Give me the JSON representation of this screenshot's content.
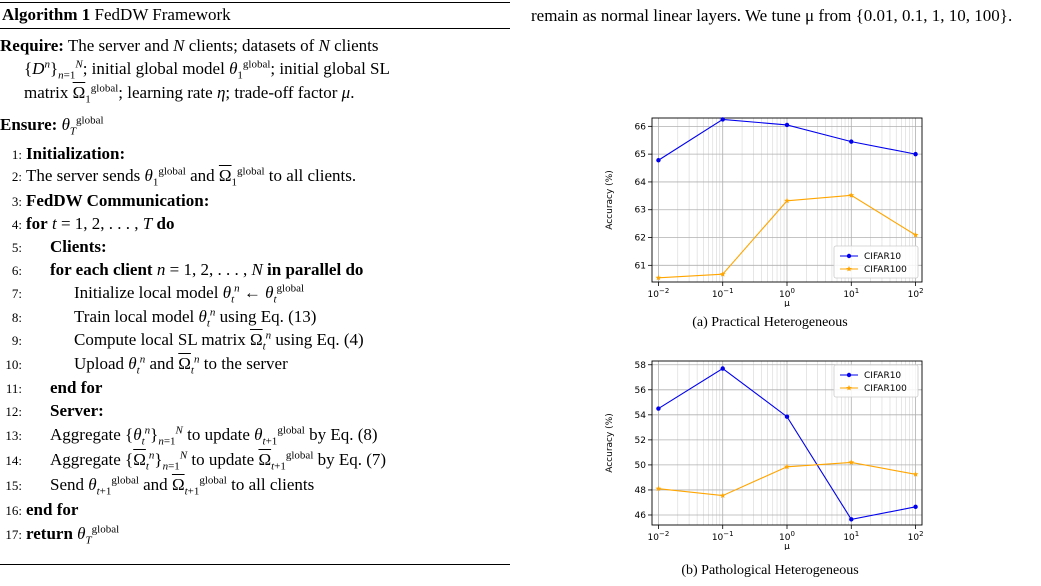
{
  "algorithm": {
    "label": "Algorithm 1",
    "title": "FedDW Framework",
    "require_label": "Require:",
    "ensure_label": "Ensure:",
    "lines": [
      {
        "num": "1:",
        "text": "Initialization:"
      },
      {
        "num": "2:",
        "text": "The server sends θ1global and Ω1global to all clients."
      },
      {
        "num": "3:",
        "text": "FedDW Communication:"
      },
      {
        "num": "4:",
        "text": "for t = 1, 2, . . . , T do"
      },
      {
        "num": "5:",
        "text": "Clients:"
      },
      {
        "num": "6:",
        "text": "for each client n = 1, 2, . . . , N in parallel do"
      },
      {
        "num": "7:",
        "text": "Initialize local model θtn ← θtglobal"
      },
      {
        "num": "8:",
        "text": "Train local model θtn using Eq. (13)"
      },
      {
        "num": "9:",
        "text": "Compute local SL matrix Ωtn using Eq. (4)"
      },
      {
        "num": "10:",
        "text": "Upload θtn and Ωtn to the server"
      },
      {
        "num": "11:",
        "text": "end for"
      },
      {
        "num": "12:",
        "text": "Server:"
      },
      {
        "num": "13:",
        "text": "Aggregate {θtn}Nn=1 to update θt+1global by Eq. (8)"
      },
      {
        "num": "14:",
        "text": "Aggregate {Ωtn}Nn=1 to update Ωt+1global by Eq. (7)"
      },
      {
        "num": "15:",
        "text": "Send θt+1global and Ωt+1global to all clients"
      },
      {
        "num": "16:",
        "text": "end for"
      },
      {
        "num": "17:",
        "text": "return θTglobal"
      }
    ]
  },
  "side_text": "remain as normal linear layers. We tune μ from {0.01, 0.1, 1, 10, 100}.",
  "chart_data": [
    {
      "type": "line",
      "caption": "(a) Practical Heterogeneous",
      "xlabel": "μ",
      "ylabel": "Accuracy (%)",
      "x": [
        0.01,
        0.1,
        1,
        10,
        100
      ],
      "x_tick_labels": [
        "10−2",
        "10−1",
        "100",
        "101",
        "102"
      ],
      "xscale": "log",
      "ylim": [
        60.4,
        66.3
      ],
      "y_ticks": [
        61,
        62,
        63,
        64,
        65,
        66
      ],
      "grid": true,
      "legend_position": "lower-right",
      "series": [
        {
          "name": "CIFAR10",
          "color": "#0000ee",
          "marker": "circle",
          "values": [
            64.78,
            66.25,
            66.05,
            65.45,
            65.0
          ]
        },
        {
          "name": "CIFAR100",
          "color": "#ffa500",
          "marker": "star",
          "values": [
            60.55,
            60.68,
            63.32,
            63.52,
            62.09
          ]
        }
      ]
    },
    {
      "type": "line",
      "caption": "(b) Pathological Heterogeneous",
      "xlabel": "μ",
      "ylabel": "Accuracy (%)",
      "x": [
        0.01,
        0.1,
        1,
        10,
        100
      ],
      "x_tick_labels": [
        "10−2",
        "10−1",
        "100",
        "101",
        "102"
      ],
      "xscale": "log",
      "ylim": [
        45.2,
        58.3
      ],
      "y_ticks": [
        46,
        48,
        50,
        52,
        54,
        56,
        58
      ],
      "grid": true,
      "legend_position": "upper-right",
      "series": [
        {
          "name": "CIFAR10",
          "color": "#0000ee",
          "marker": "circle",
          "values": [
            54.5,
            57.7,
            53.85,
            45.65,
            46.65
          ]
        },
        {
          "name": "CIFAR100",
          "color": "#ffa500",
          "marker": "star",
          "values": [
            48.1,
            47.55,
            49.85,
            50.2,
            49.25
          ]
        }
      ]
    }
  ]
}
